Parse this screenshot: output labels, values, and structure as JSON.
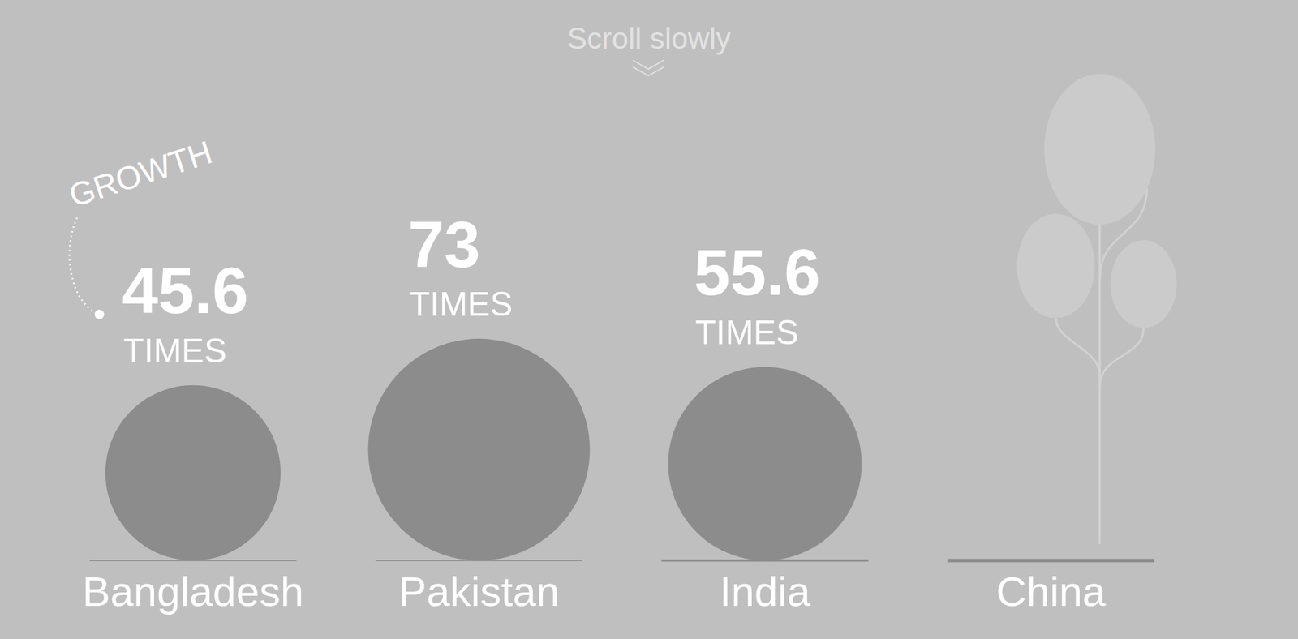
{
  "chart_data": {
    "type": "bubble",
    "annotations": [
      "Scroll slowly",
      "GROWTH"
    ],
    "categories": [
      "Bangladesh",
      "Pakistan",
      "India",
      "China"
    ],
    "values": [
      45.6,
      73,
      55.6,
      null
    ],
    "unit_label": "TIMES",
    "color": "#8c8c8c",
    "data_labels": true,
    "tick_labels": "x"
  }
}
